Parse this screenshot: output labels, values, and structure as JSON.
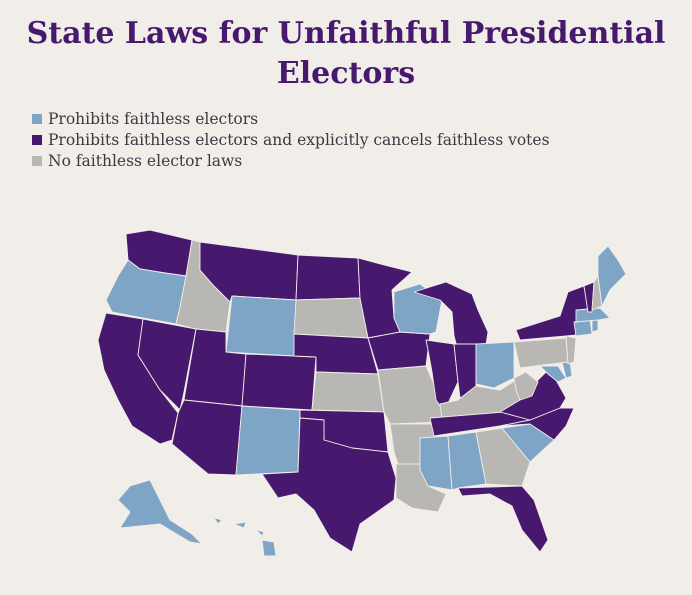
{
  "title": {
    "line1": "State Laws for Unfaithful Presidential",
    "line2": "Electors"
  },
  "legend": [
    {
      "label": "Prohibits faithless electors",
      "category": "prohibits",
      "color": "#7ea4c6"
    },
    {
      "label": "Prohibits faithless electors and explicitly cancels faithless votes",
      "category": "cancels",
      "color": "#46186e"
    },
    {
      "label": "No faithless elector laws",
      "category": "none",
      "color": "#b8b7b4"
    }
  ],
  "colors": {
    "background": "#f1ede8",
    "prohibits": "#7ea4c6",
    "cancels": "#46186e",
    "none": "#b8b7b4"
  },
  "states": [
    {
      "name": "Washington",
      "category": "cancels"
    },
    {
      "name": "Oregon",
      "category": "prohibits"
    },
    {
      "name": "California",
      "category": "cancels"
    },
    {
      "name": "Nevada",
      "category": "cancels"
    },
    {
      "name": "Idaho",
      "category": "none"
    },
    {
      "name": "Montana",
      "category": "cancels"
    },
    {
      "name": "Wyoming",
      "category": "prohibits"
    },
    {
      "name": "Utah",
      "category": "cancels"
    },
    {
      "name": "Arizona",
      "category": "cancels"
    },
    {
      "name": "Colorado",
      "category": "cancels"
    },
    {
      "name": "New Mexico",
      "category": "prohibits"
    },
    {
      "name": "North Dakota",
      "category": "cancels"
    },
    {
      "name": "South Dakota",
      "category": "none"
    },
    {
      "name": "Nebraska",
      "category": "cancels"
    },
    {
      "name": "Kansas",
      "category": "none"
    },
    {
      "name": "Oklahoma",
      "category": "cancels"
    },
    {
      "name": "Texas",
      "category": "cancels"
    },
    {
      "name": "Minnesota",
      "category": "cancels"
    },
    {
      "name": "Iowa",
      "category": "cancels"
    },
    {
      "name": "Missouri",
      "category": "none"
    },
    {
      "name": "Arkansas",
      "category": "none"
    },
    {
      "name": "Louisiana",
      "category": "none"
    },
    {
      "name": "Wisconsin",
      "category": "prohibits"
    },
    {
      "name": "Michigan",
      "category": "cancels"
    },
    {
      "name": "Illinois",
      "category": "cancels"
    },
    {
      "name": "Indiana",
      "category": "cancels"
    },
    {
      "name": "Ohio",
      "category": "prohibits"
    },
    {
      "name": "Kentucky",
      "category": "none"
    },
    {
      "name": "Tennessee",
      "category": "cancels"
    },
    {
      "name": "Mississippi",
      "category": "prohibits"
    },
    {
      "name": "Alabama",
      "category": "prohibits"
    },
    {
      "name": "Georgia",
      "category": "none"
    },
    {
      "name": "Florida",
      "category": "cancels"
    },
    {
      "name": "South Carolina",
      "category": "prohibits"
    },
    {
      "name": "North Carolina",
      "category": "cancels"
    },
    {
      "name": "Virginia",
      "category": "cancels"
    },
    {
      "name": "West Virginia",
      "category": "none"
    },
    {
      "name": "Maryland",
      "category": "prohibits"
    },
    {
      "name": "Delaware",
      "category": "prohibits"
    },
    {
      "name": "Pennsylvania",
      "category": "none"
    },
    {
      "name": "New Jersey",
      "category": "none"
    },
    {
      "name": "New York",
      "category": "cancels"
    },
    {
      "name": "Connecticut",
      "category": "prohibits"
    },
    {
      "name": "Rhode Island",
      "category": "prohibits"
    },
    {
      "name": "Massachusetts",
      "category": "prohibits"
    },
    {
      "name": "Vermont",
      "category": "cancels"
    },
    {
      "name": "New Hampshire",
      "category": "none"
    },
    {
      "name": "Maine",
      "category": "prohibits"
    },
    {
      "name": "Alaska",
      "category": "prohibits"
    },
    {
      "name": "Hawaii",
      "category": "prohibits"
    }
  ]
}
